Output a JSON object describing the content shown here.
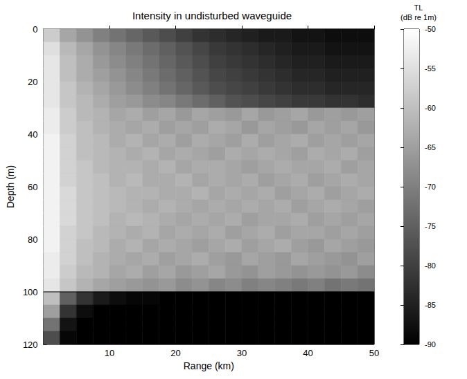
{
  "chart_data": {
    "type": "heatmap",
    "title": "Intensity in undisturbed waveguide",
    "x_label": "Range (km)",
    "y_label": "Depth (m)",
    "xlim": [
      0,
      50
    ],
    "xticks": [
      10,
      20,
      30,
      40,
      50
    ],
    "ylim": [
      0,
      120
    ],
    "yticks": [
      0,
      20,
      40,
      60,
      80,
      100,
      120
    ],
    "x_bins": [
      0,
      2.5,
      5,
      7.5,
      10,
      12.5,
      15,
      17.5,
      20,
      22.5,
      25,
      27.5,
      30,
      32.5,
      35,
      37.5,
      40,
      42.5,
      45,
      47.5,
      50
    ],
    "y_bins": [
      0,
      5,
      10,
      15,
      20,
      25,
      30,
      35,
      40,
      45,
      50,
      55,
      60,
      65,
      70,
      75,
      80,
      85,
      90,
      95,
      100,
      105,
      110,
      115,
      120
    ],
    "values": [
      [
        -58,
        -64,
        -67,
        -70,
        -72,
        -74,
        -76,
        -78,
        -80,
        -82,
        -83,
        -84,
        -85,
        -86,
        -86,
        -87,
        -87,
        -88,
        -88,
        -88
      ],
      [
        -55,
        -61,
        -64,
        -67,
        -69,
        -71,
        -73,
        -75,
        -77,
        -79,
        -81,
        -82,
        -83,
        -84,
        -85,
        -86,
        -86,
        -87,
        -87,
        -87
      ],
      [
        -54,
        -60,
        -63,
        -66,
        -68,
        -70,
        -72,
        -74,
        -76,
        -78,
        -80,
        -81,
        -82,
        -83,
        -84,
        -85,
        -85,
        -86,
        -86,
        -86
      ],
      [
        -54,
        -60,
        -63,
        -65,
        -67,
        -69,
        -71,
        -73,
        -75,
        -77,
        -79,
        -80,
        -81,
        -82,
        -83,
        -84,
        -84,
        -85,
        -85,
        -85
      ],
      [
        -54,
        -59,
        -62,
        -64,
        -66,
        -68,
        -70,
        -72,
        -74,
        -76,
        -78,
        -79,
        -80,
        -81,
        -82,
        -83,
        -83,
        -84,
        -84,
        -84
      ],
      [
        -54,
        -59,
        -61,
        -63,
        -65,
        -66,
        -68,
        -69,
        -71,
        -73,
        -75,
        -77,
        -78,
        -79,
        -80,
        -81,
        -81,
        -82,
        -82,
        -83
      ],
      [
        -53,
        -58,
        -61,
        -62,
        -64,
        -63,
        -65,
        -64,
        -66,
        -64,
        -65,
        -66,
        -64,
        -66,
        -65,
        -64,
        -66,
        -65,
        -66,
        -65
      ],
      [
        -53,
        -58,
        -60,
        -62,
        -63,
        -64,
        -63,
        -65,
        -64,
        -65,
        -63,
        -64,
        -66,
        -64,
        -65,
        -66,
        -64,
        -65,
        -64,
        -66
      ],
      [
        -52,
        -57,
        -60,
        -61,
        -63,
        -62,
        -64,
        -63,
        -65,
        -63,
        -64,
        -65,
        -63,
        -65,
        -64,
        -63,
        -65,
        -64,
        -65,
        -64
      ],
      [
        -52,
        -57,
        -60,
        -61,
        -62,
        -63,
        -62,
        -64,
        -63,
        -64,
        -65,
        -63,
        -64,
        -63,
        -64,
        -65,
        -63,
        -64,
        -63,
        -65
      ],
      [
        -52,
        -57,
        -59,
        -61,
        -62,
        -62,
        -63,
        -62,
        -64,
        -63,
        -63,
        -64,
        -65,
        -64,
        -63,
        -64,
        -64,
        -63,
        -65,
        -64
      ],
      [
        -52,
        -57,
        -59,
        -60,
        -62,
        -61,
        -63,
        -63,
        -62,
        -64,
        -63,
        -64,
        -63,
        -65,
        -64,
        -63,
        -65,
        -64,
        -63,
        -64
      ],
      [
        -52,
        -56,
        -59,
        -60,
        -61,
        -62,
        -62,
        -63,
        -63,
        -62,
        -64,
        -63,
        -64,
        -63,
        -65,
        -64,
        -63,
        -65,
        -64,
        -63
      ],
      [
        -52,
        -56,
        -59,
        -60,
        -61,
        -62,
        -63,
        -62,
        -63,
        -64,
        -63,
        -64,
        -63,
        -64,
        -63,
        -65,
        -64,
        -63,
        -64,
        -65
      ],
      [
        -52,
        -56,
        -59,
        -60,
        -62,
        -61,
        -62,
        -63,
        -64,
        -63,
        -64,
        -63,
        -65,
        -64,
        -64,
        -63,
        -65,
        -64,
        -65,
        -64
      ],
      [
        -52,
        -57,
        -59,
        -61,
        -62,
        -63,
        -62,
        -64,
        -63,
        -64,
        -63,
        -65,
        -64,
        -63,
        -65,
        -64,
        -64,
        -65,
        -64,
        -65
      ],
      [
        -52,
        -57,
        -60,
        -61,
        -63,
        -62,
        -64,
        -63,
        -64,
        -65,
        -64,
        -63,
        -65,
        -64,
        -63,
        -65,
        -66,
        -64,
        -65,
        -66
      ],
      [
        -53,
        -57,
        -60,
        -62,
        -63,
        -64,
        -63,
        -65,
        -64,
        -63,
        -65,
        -66,
        -64,
        -65,
        -66,
        -64,
        -65,
        -66,
        -67,
        -65
      ],
      [
        -53,
        -58,
        -61,
        -62,
        -64,
        -63,
        -65,
        -64,
        -66,
        -65,
        -64,
        -66,
        -67,
        -65,
        -66,
        -67,
        -66,
        -67,
        -66,
        -68
      ],
      [
        -54,
        -59,
        -62,
        -64,
        -65,
        -66,
        -67,
        -66,
        -68,
        -67,
        -69,
        -68,
        -70,
        -69,
        -70,
        -71,
        -70,
        -72,
        -71,
        -72
      ],
      [
        -60,
        -75,
        -82,
        -86,
        -88,
        -89,
        -89,
        -90,
        -90,
        -90,
        -90,
        -90,
        -90,
        -90,
        -90,
        -90,
        -90,
        -90,
        -90,
        -90
      ],
      [
        -65,
        -82,
        -88,
        -90,
        -90,
        -90,
        -90,
        -90,
        -90,
        -90,
        -90,
        -90,
        -90,
        -90,
        -90,
        -90,
        -90,
        -90,
        -90,
        -90
      ],
      [
        -72,
        -87,
        -90,
        -90,
        -90,
        -90,
        -90,
        -90,
        -90,
        -90,
        -90,
        -90,
        -90,
        -90,
        -90,
        -90,
        -90,
        -90,
        -90,
        -90
      ],
      [
        -78,
        -89,
        -90,
        -90,
        -90,
        -90,
        -90,
        -90,
        -90,
        -90,
        -90,
        -90,
        -90,
        -90,
        -90,
        -90,
        -90,
        -90,
        -90,
        -90
      ]
    ],
    "interface_depth": 100,
    "colorbar_title": [
      "TL",
      "(dB re 1m)"
    ],
    "colorbar_lim": [
      -90,
      -50
    ],
    "colorbar_ticks": [
      -50,
      -55,
      -60,
      -65,
      -70,
      -75,
      -80,
      -85,
      -90
    ]
  }
}
